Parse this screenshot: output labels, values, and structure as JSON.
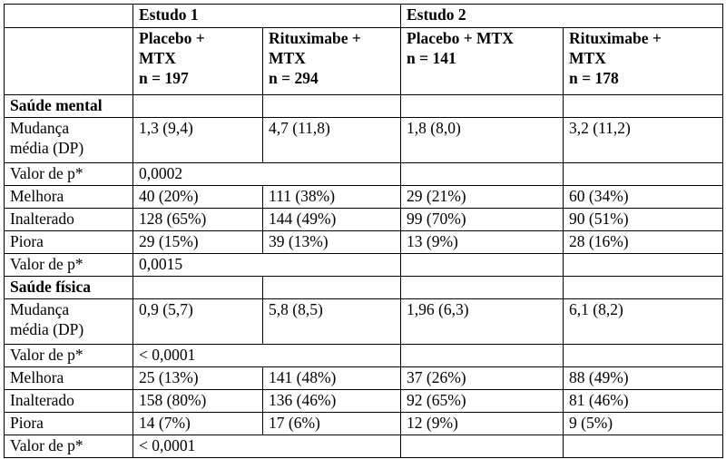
{
  "header": {
    "study1": "Estudo 1",
    "study2": "Estudo 2",
    "columns": [
      [
        "Placebo +",
        "MTX",
        "n = 197"
      ],
      [
        "Rituximabe +",
        "MTX",
        "n = 294"
      ],
      [
        "Placebo + MTX",
        "n = 141",
        ""
      ],
      [
        "Rituximabe +",
        "MTX",
        "n = 178"
      ]
    ]
  },
  "sections": [
    {
      "title": "Saúde mental",
      "mean_change": {
        "label": [
          "Mudança",
          "média (DP)"
        ],
        "values": [
          "1,3 (9,4)",
          "4,7 (11,8)",
          "1,8 (8,0)",
          "3,2 (11,2)"
        ]
      },
      "p1": {
        "label": "Valor de p*",
        "value": "0,0002"
      },
      "rows": [
        {
          "label": "Melhora",
          "values": [
            "40 (20%)",
            "111 (38%)",
            "29 (21%)",
            "60 (34%)"
          ]
        },
        {
          "label": "Inalterado",
          "values": [
            "128 (65%)",
            "144 (49%)",
            "99 (70%)",
            "90 (51%)"
          ]
        },
        {
          "label": "Piora",
          "values": [
            "29 (15%)",
            "39 (13%)",
            "13 (9%)",
            "28 (16%)"
          ]
        }
      ],
      "p2": {
        "label": "Valor de p*",
        "value": "0,0015"
      }
    },
    {
      "title": "Saúde física",
      "mean_change": {
        "label": [
          "Mudança",
          "média (DP)"
        ],
        "values": [
          "0,9 (5,7)",
          "5,8 (8,5)",
          "1,96 (6,3)",
          "6,1 (8,2)"
        ]
      },
      "p1": {
        "label": "Valor de p*",
        "value": "< 0,0001"
      },
      "rows": [
        {
          "label": "Melhora",
          "values": [
            "25 (13%)",
            "141 (48%)",
            "37 (26%)",
            "88 (49%)"
          ]
        },
        {
          "label": "Inalterado",
          "values": [
            "158 (80%)",
            "136 (46%)",
            "92 (65%)",
            "81 (46%)"
          ]
        },
        {
          "label": "Piora",
          "values": [
            "14 (7%)",
            "17 (6%)",
            "12 (9%)",
            "9 (5%)"
          ]
        }
      ],
      "p2": {
        "label": "Valor de p*",
        "value": "< 0,0001"
      }
    }
  ]
}
